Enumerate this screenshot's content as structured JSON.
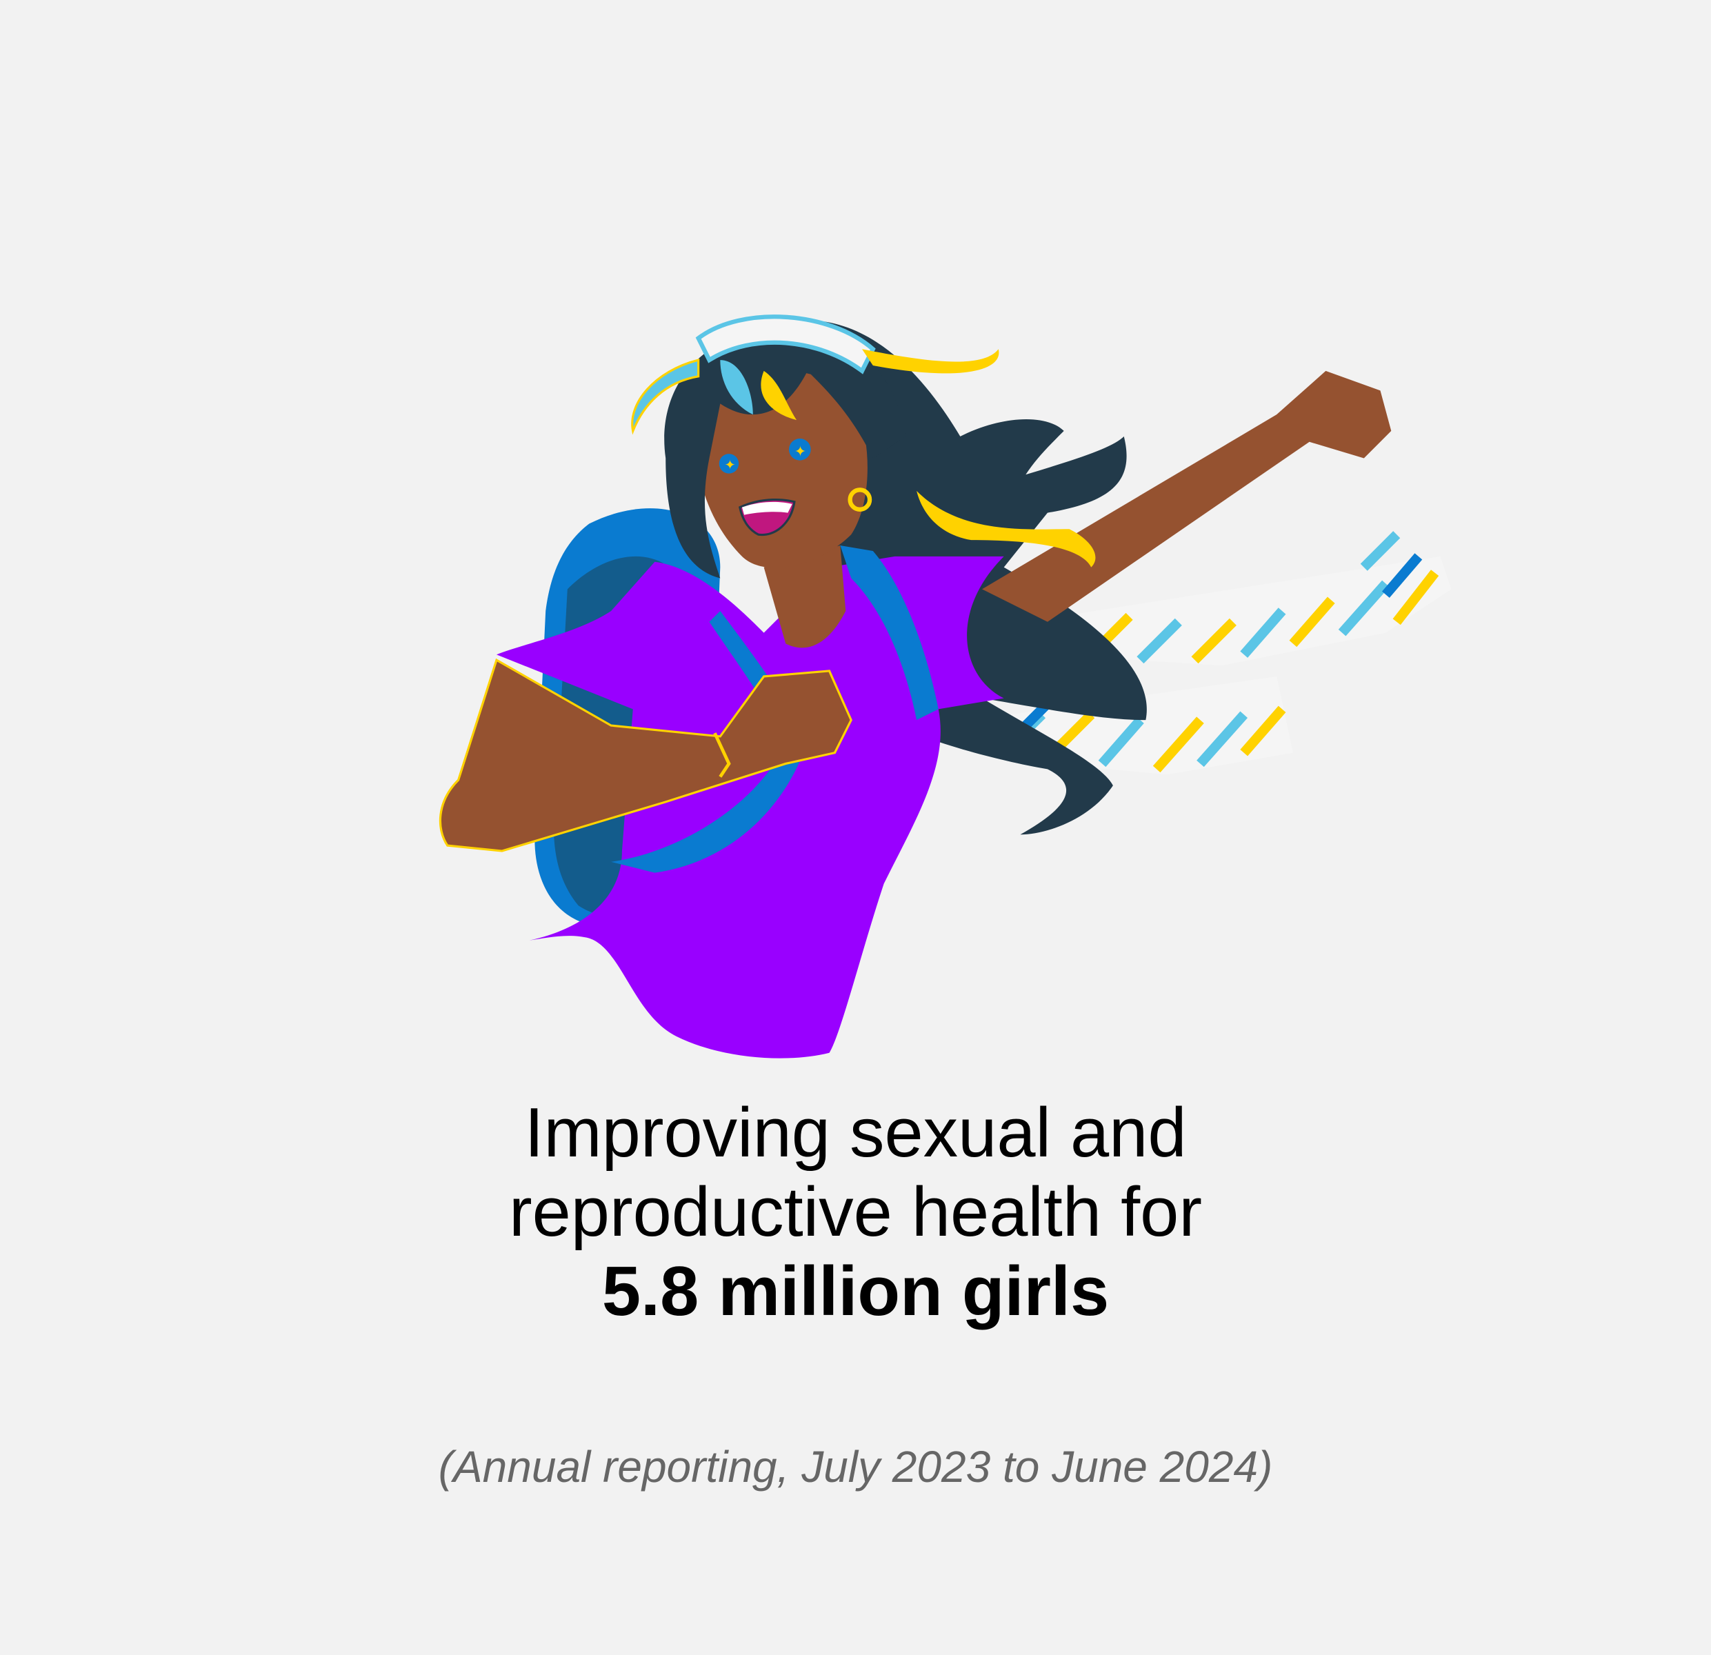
{
  "headline": {
    "line1": "Improving sexual and",
    "line2": "reproductive health for",
    "highlight": "5.8 million girls"
  },
  "subtitle": "(Annual reporting, July 2023 to June 2024)",
  "illustration": {
    "subject": "girl-with-backpack-illustration",
    "colors": {
      "background": "#f2f2f2",
      "shirt": "#9900ff",
      "skin": "#955230",
      "hair": "#223a4a",
      "backpack": "#0a7bd0",
      "backpack_dark": "#135c8c",
      "yellow": "#ffd200",
      "light_blue": "#5bc5e6"
    }
  }
}
